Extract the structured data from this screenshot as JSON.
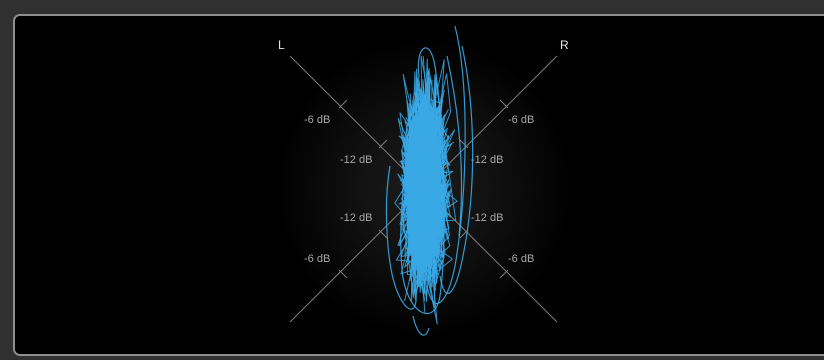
{
  "meter": {
    "channels": {
      "left": "L",
      "right": "R"
    },
    "scale_labels": {
      "upper_left": "-6 dB",
      "upper_right": "-6 dB",
      "inner_upper_left": "-12 dB",
      "inner_upper_right": "-12 dB",
      "inner_lower_left": "-12 dB",
      "inner_lower_right": "-12 dB",
      "lower_left": "-6 dB",
      "lower_right": "-6 dB"
    },
    "colors": {
      "trace": "#3aa9e6",
      "axis": "#7f7f7f",
      "label": "#a8a8a8",
      "channel_label": "#e6e6e6",
      "panel_border": "#8e8e8e",
      "background": "#000000"
    },
    "trace_style": "vertical mono-ish lissajous cloud"
  }
}
